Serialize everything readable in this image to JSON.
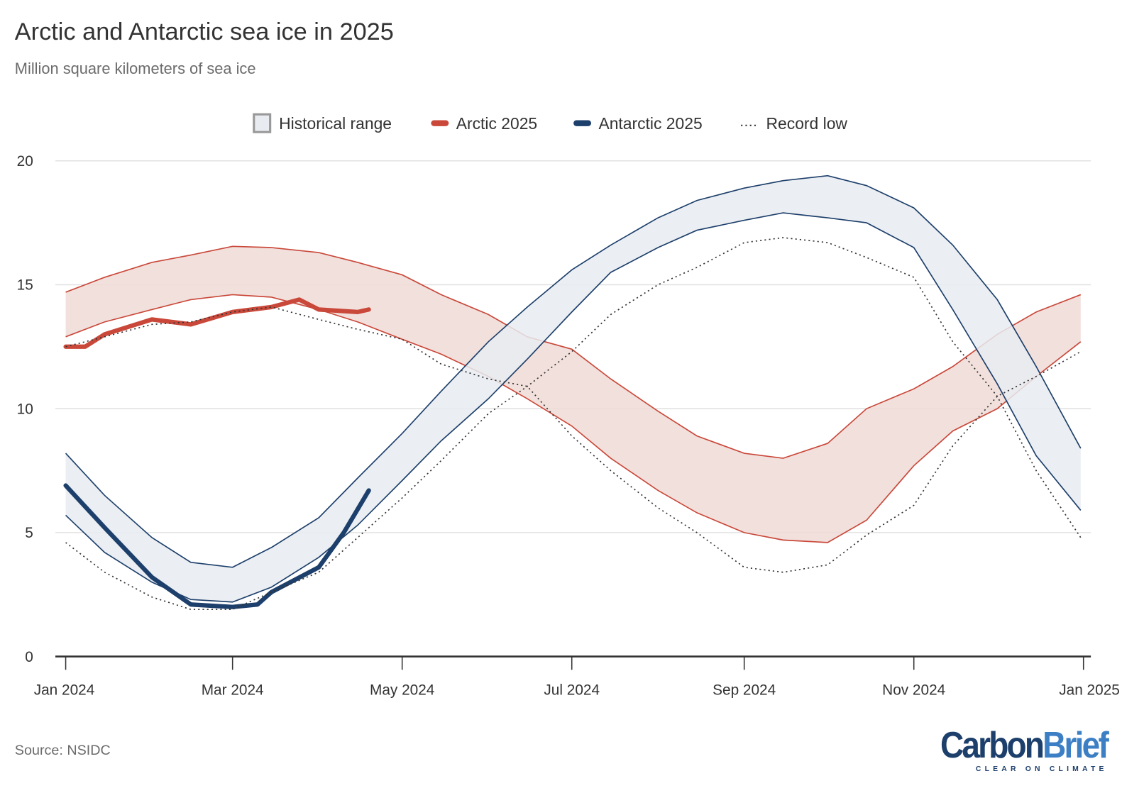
{
  "title": "Arctic and Antarctic sea ice in 2025",
  "subtitle": "Million square kilometers of sea ice",
  "source": "Source: NSIDC",
  "logo": {
    "text_carbon": "Carbon",
    "text_brief": "Brief",
    "tagline": "CLEAR ON CLIMATE"
  },
  "colors": {
    "arctic": "#c9483a",
    "arctic_band": "#f0dad6",
    "antarctic": "#1d3f6b",
    "antarctic_band": "#e8ecf1",
    "record_low": "#333333",
    "grid": "#e2e2e2"
  },
  "legend": [
    {
      "label": "Historical range",
      "icon": "grey-box"
    },
    {
      "label": "Arctic 2025",
      "icon": "red-line"
    },
    {
      "label": "Antarctic 2025",
      "icon": "blue-line"
    },
    {
      "label": "Record low",
      "icon": "dotted-line"
    }
  ],
  "chart_data": {
    "type": "line",
    "title": "Arctic and Antarctic sea ice in 2025",
    "ylabel": "Million square kilometers of sea ice",
    "ylim": [
      0,
      20
    ],
    "yticks": [
      "0",
      "5",
      "10",
      "15",
      "20"
    ],
    "xlim": [
      "2024-01-01",
      "2025-01-01"
    ],
    "xticks": [
      {
        "date": "2024-01-01",
        "label": "Jan 2024"
      },
      {
        "date": "2024-03-01",
        "label": "Mar 2024"
      },
      {
        "date": "2024-05-01",
        "label": "May 2024"
      },
      {
        "date": "2024-07-01",
        "label": "Jul 2024"
      },
      {
        "date": "2024-09-01",
        "label": "Sep 2024"
      },
      {
        "date": "2024-11-01",
        "label": "Nov 2024"
      },
      {
        "date": "2025-01-01",
        "label": "Jan 2025"
      }
    ],
    "grid": true,
    "legend_position": "top",
    "bands": [
      {
        "region": "Arctic",
        "dates": [
          "2024-01-01",
          "2024-01-15",
          "2024-02-01",
          "2024-02-15",
          "2024-03-01",
          "2024-03-15",
          "2024-04-01",
          "2024-04-15",
          "2024-05-01",
          "2024-05-15",
          "2024-06-01",
          "2024-06-15",
          "2024-07-01",
          "2024-07-15",
          "2024-08-01",
          "2024-08-15",
          "2024-09-01",
          "2024-09-15",
          "2024-10-01",
          "2024-10-15",
          "2024-11-01",
          "2024-11-15",
          "2024-12-01",
          "2024-12-15",
          "2024-12-31"
        ],
        "upper": [
          14.7,
          15.3,
          15.9,
          16.2,
          16.55,
          16.5,
          16.3,
          15.9,
          15.4,
          14.6,
          13.8,
          12.9,
          12.4,
          11.2,
          9.9,
          8.9,
          8.2,
          8.0,
          8.6,
          10.0,
          10.8,
          11.7,
          13.0,
          13.9,
          14.6
        ],
        "lower": [
          12.9,
          13.5,
          14.0,
          14.4,
          14.6,
          14.5,
          14.0,
          13.5,
          12.8,
          12.2,
          11.3,
          10.4,
          9.3,
          8.0,
          6.7,
          5.8,
          5.0,
          4.7,
          4.6,
          5.5,
          7.7,
          9.1,
          10.0,
          11.3,
          12.7
        ]
      },
      {
        "region": "Antarctic",
        "dates": [
          "2024-01-01",
          "2024-01-15",
          "2024-02-01",
          "2024-02-15",
          "2024-03-01",
          "2024-03-15",
          "2024-04-01",
          "2024-04-15",
          "2024-05-01",
          "2024-05-15",
          "2024-06-01",
          "2024-06-15",
          "2024-07-01",
          "2024-07-15",
          "2024-08-01",
          "2024-08-15",
          "2024-09-01",
          "2024-09-15",
          "2024-10-01",
          "2024-10-15",
          "2024-11-01",
          "2024-11-15",
          "2024-12-01",
          "2024-12-15",
          "2024-12-31"
        ],
        "upper": [
          8.2,
          6.5,
          4.8,
          3.8,
          3.6,
          4.4,
          5.6,
          7.2,
          9.0,
          10.7,
          12.7,
          14.1,
          15.6,
          16.6,
          17.7,
          18.4,
          18.9,
          19.2,
          19.4,
          19.0,
          18.1,
          16.6,
          14.4,
          11.7,
          8.4
        ],
        "lower": [
          5.7,
          4.2,
          3.0,
          2.3,
          2.2,
          2.8,
          4.0,
          5.3,
          7.1,
          8.7,
          10.4,
          12.0,
          13.9,
          15.5,
          16.5,
          17.2,
          17.6,
          17.9,
          17.7,
          17.5,
          16.5,
          14.0,
          11.0,
          8.1,
          5.9
        ]
      }
    ],
    "series": [
      {
        "name": "Arctic 2025",
        "dates": [
          "2024-01-01",
          "2024-01-08",
          "2024-01-15",
          "2024-02-01",
          "2024-02-15",
          "2024-03-01",
          "2024-03-15",
          "2024-03-25",
          "2024-04-01",
          "2024-04-15",
          "2024-04-19"
        ],
        "values": [
          12.5,
          12.5,
          13.0,
          13.6,
          13.4,
          13.9,
          14.1,
          14.4,
          14.0,
          13.9,
          14.0
        ]
      },
      {
        "name": "Antarctic 2025",
        "dates": [
          "2024-01-01",
          "2024-01-15",
          "2024-02-01",
          "2024-02-15",
          "2024-03-01",
          "2024-03-10",
          "2024-03-15",
          "2024-04-01",
          "2024-04-10",
          "2024-04-19"
        ],
        "values": [
          6.9,
          5.2,
          3.2,
          2.1,
          2.0,
          2.1,
          2.6,
          3.6,
          5.0,
          6.7
        ]
      },
      {
        "name": "Record low",
        "region": "Arctic",
        "dates": [
          "2024-01-01",
          "2024-01-15",
          "2024-02-01",
          "2024-02-15",
          "2024-03-01",
          "2024-03-15",
          "2024-04-01",
          "2024-04-15",
          "2024-05-01",
          "2024-05-15",
          "2024-06-01",
          "2024-06-15",
          "2024-07-01",
          "2024-07-15",
          "2024-08-01",
          "2024-08-15",
          "2024-09-01",
          "2024-09-15",
          "2024-10-01",
          "2024-10-15",
          "2024-11-01",
          "2024-11-15",
          "2024-12-01",
          "2024-12-15",
          "2024-12-31"
        ],
        "values": [
          12.5,
          12.9,
          13.4,
          13.5,
          13.9,
          14.1,
          13.6,
          13.2,
          12.8,
          11.8,
          11.2,
          10.9,
          8.9,
          7.5,
          6.0,
          5.0,
          3.6,
          3.4,
          3.7,
          4.9,
          6.1,
          8.5,
          10.5,
          11.3,
          12.3
        ]
      },
      {
        "name": "Record low",
        "region": "Antarctic",
        "dates": [
          "2024-01-01",
          "2024-01-15",
          "2024-02-01",
          "2024-02-15",
          "2024-03-01",
          "2024-03-15",
          "2024-04-01",
          "2024-04-15",
          "2024-05-01",
          "2024-05-15",
          "2024-06-01",
          "2024-06-15",
          "2024-07-01",
          "2024-07-15",
          "2024-08-01",
          "2024-08-15",
          "2024-09-01",
          "2024-09-15",
          "2024-10-01",
          "2024-10-15",
          "2024-11-01",
          "2024-11-15",
          "2024-12-01",
          "2024-12-15",
          "2024-12-31"
        ],
        "values": [
          4.6,
          3.4,
          2.4,
          1.9,
          1.9,
          2.6,
          3.4,
          4.8,
          6.4,
          7.9,
          9.8,
          10.9,
          12.3,
          13.8,
          15.0,
          15.7,
          16.7,
          16.9,
          16.7,
          16.1,
          15.3,
          12.7,
          10.5,
          7.5,
          4.8
        ]
      }
    ]
  }
}
